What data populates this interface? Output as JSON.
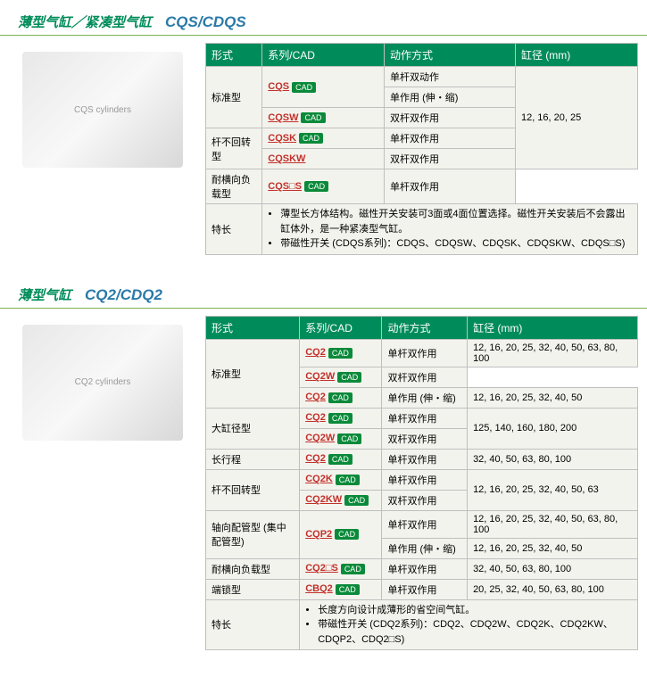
{
  "sections": [
    {
      "title_cn": "薄型气缸／紧凑型气缸",
      "title_en": "CQS/CDQS",
      "img_alt": "CQS cylinders",
      "headers": [
        "形式",
        "系列/CAD",
        "动作方式",
        "缸径 (mm)"
      ],
      "rows": [
        {
          "form": "标准型",
          "form_rs": 3,
          "series": "CQS",
          "cad": true,
          "series_rs": 2,
          "action": "单杆双动作",
          "bore": "12, 16, 20, 25",
          "bore_rs": 5
        },
        {
          "action": "单作用 (伸・缩)"
        },
        {
          "series": "CQSW",
          "cad": true,
          "action": "双杆双作用"
        },
        {
          "form": "杆不回转型",
          "form_rs": 2,
          "series": "CQSK",
          "cad": true,
          "action": "单杆双作用"
        },
        {
          "series": "CQSKW",
          "action": "双杆双作用"
        },
        {
          "form": "耐横向负载型",
          "series": "CQS□S",
          "cad": true,
          "action": "单杆双作用"
        }
      ],
      "feature_label": "特长",
      "features": [
        "薄型长方体结构。磁性开关安装可3面或4面位置选择。磁性开关安装后不会露出缸体外，是一种紧凑型气缸。",
        "带磁性开关 (CDQS系列)：CDQS、CDQSW、CDQSK、CDQSKW、CDQS□S)"
      ]
    },
    {
      "title_cn": "薄型气缸",
      "title_en": "CQ2/CDQ2",
      "img_alt": "CQ2 cylinders",
      "headers": [
        "形式",
        "系列/CAD",
        "动作方式",
        "缸径 (mm)"
      ],
      "rows": [
        {
          "form": "标准型",
          "form_rs": 3,
          "series": "CQ2",
          "cad": true,
          "action": "单杆双作用",
          "bore": "12, 16, 20, 25, 32, 40, 50, 63, 80, 100"
        },
        {
          "series": "CQ2W",
          "cad": true,
          "action": "双杆双作用"
        },
        {
          "series": "CQ2",
          "cad": true,
          "action": "单作用 (伸・缩)",
          "bore": "12, 16, 20, 25, 32, 40, 50"
        },
        {
          "form": "大缸径型",
          "form_rs": 2,
          "series": "CQ2",
          "cad": true,
          "action": "单杆双作用",
          "bore": "125, 140, 160, 180, 200",
          "bore_rs": 2
        },
        {
          "series": "CQ2W",
          "cad": true,
          "action": "双杆双作用"
        },
        {
          "form": "长行程",
          "series": "CQ2",
          "cad": true,
          "action": "单杆双作用",
          "bore": "32, 40, 50, 63, 80, 100"
        },
        {
          "form": "杆不回转型",
          "form_rs": 2,
          "series": "CQ2K",
          "cad": true,
          "action": "单杆双作用",
          "bore": "12, 16, 20, 25, 32, 40, 50, 63",
          "bore_rs": 2
        },
        {
          "series": "CQ2KW",
          "cad": true,
          "action": "双杆双作用"
        },
        {
          "form": "轴向配管型 (集中配管型)",
          "form_rs": 2,
          "series": "CQP2",
          "cad": true,
          "series_rs": 2,
          "action": "单杆双作用",
          "bore": "12, 16, 20, 25, 32, 40, 50, 63, 80, 100"
        },
        {
          "action": "单作用 (伸・缩)",
          "bore": "12, 16, 20, 25, 32, 40, 50"
        },
        {
          "form": "耐横向负载型",
          "series": "CQ2□S",
          "cad": true,
          "action": "单杆双作用",
          "bore": "32, 40, 50, 63, 80, 100"
        },
        {
          "form": "端锁型",
          "series": "CBQ2",
          "cad": true,
          "action": "单杆双作用",
          "bore": "20, 25, 32, 40, 50, 63, 80, 100"
        }
      ],
      "feature_label": "特长",
      "features": [
        "长度方向设计成薄形的省空间气缸。",
        "带磁性开关 (CDQ2系列)：CDQ2、CDQ2W、CDQ2K、CDQ2KW、CDQP2、CDQ2□S)"
      ]
    }
  ],
  "cad_label": "CAD"
}
